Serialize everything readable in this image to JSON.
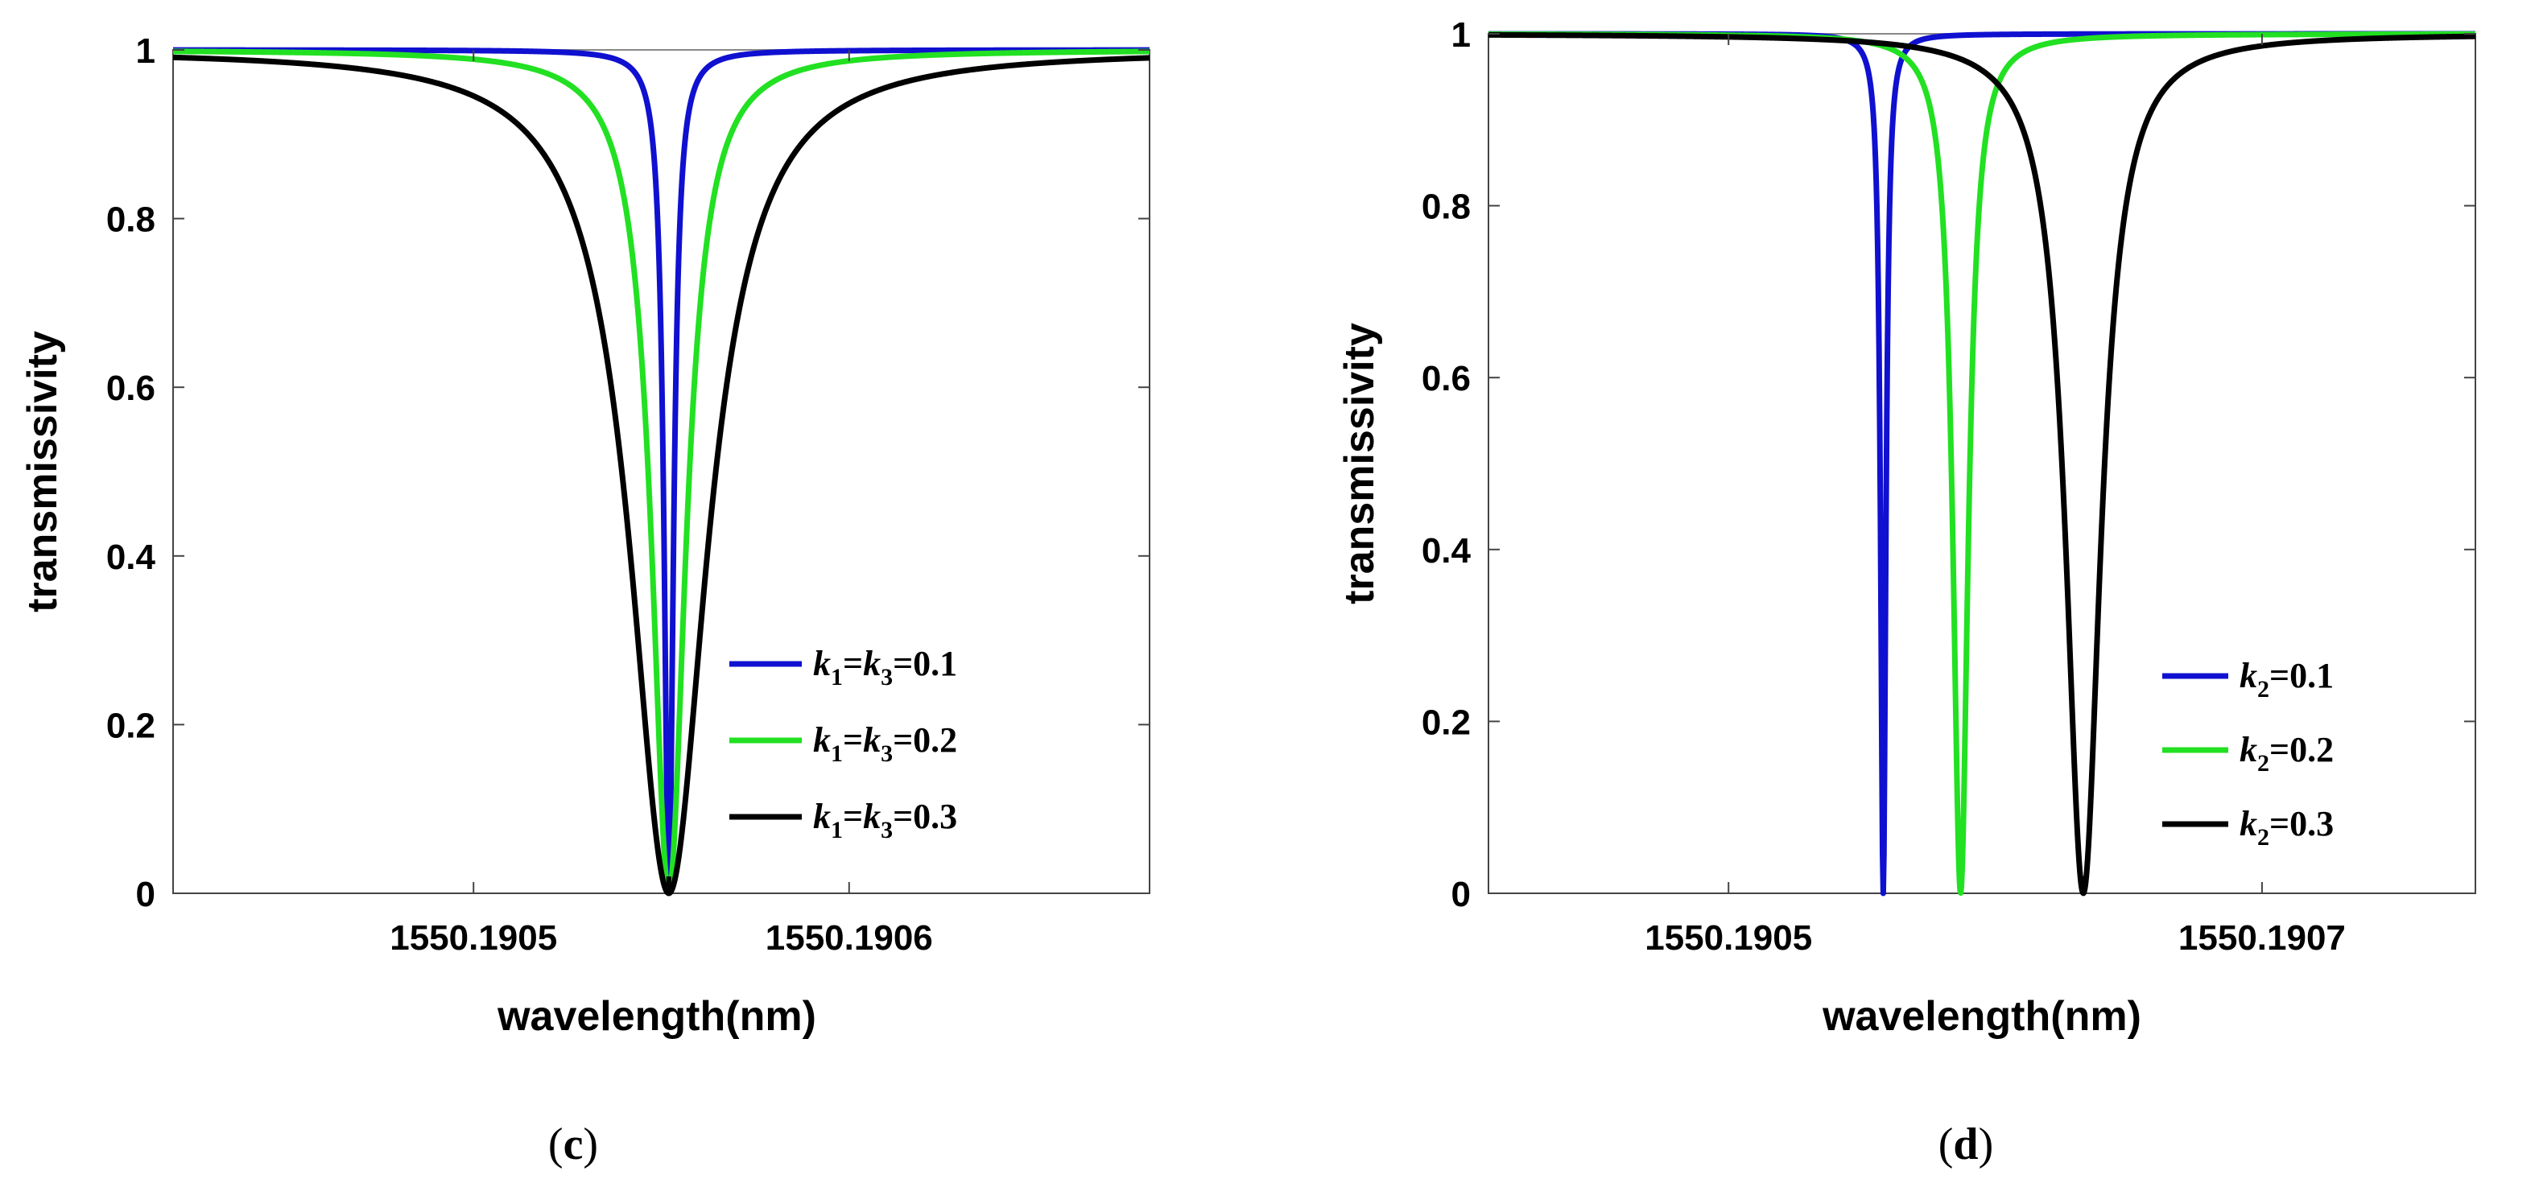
{
  "chart_data": [
    {
      "type": "line",
      "panel_label": "c",
      "xlabel": "wavelength(nm)",
      "ylabel": "transmissivity",
      "xlim": [
        1550.19042,
        1550.19068
      ],
      "ylim": [
        0,
        1
      ],
      "xticks": [
        1550.1905,
        1550.1906
      ],
      "xtick_labels": [
        "1550.1905",
        "1550.1906"
      ],
      "yticks": [
        0,
        0.2,
        0.4,
        0.6,
        0.8,
        1
      ],
      "ytick_labels": [
        "0",
        "0.2",
        "0.4",
        "0.6",
        "0.8",
        "1"
      ],
      "legend_position": "bottom-right",
      "series": [
        {
          "label": "k1=k3=0.1",
          "legend": {
            "k1": "k",
            "s1": "1",
            "eq1": "=",
            "k2": "k",
            "s2": "3",
            "val": "=0.1"
          },
          "color": "#1010d0",
          "center": 1550.190552,
          "halfwidth": 1.5e-06,
          "floor": 0.0
        },
        {
          "label": "k1=k3=0.2",
          "legend": {
            "k1": "k",
            "s1": "1",
            "eq1": "=",
            "k2": "k",
            "s2": "3",
            "val": "=0.2"
          },
          "color": "#22e022",
          "center": 1550.190552,
          "halfwidth": 5.5e-06,
          "floor": 0.0
        },
        {
          "label": "k1=k3=0.3",
          "legend": {
            "k1": "k",
            "s1": "1",
            "eq1": "=",
            "k2": "k",
            "s2": "3",
            "val": "=0.3"
          },
          "color": "#000000",
          "center": 1550.190552,
          "halfwidth": 1.25e-05,
          "floor": 0.0
        }
      ]
    },
    {
      "type": "line",
      "panel_label": "d",
      "xlabel": "wavelength(nm)",
      "ylabel": "transmissivity",
      "xlim": [
        1550.19041,
        1550.19078
      ],
      "ylim": [
        0,
        1
      ],
      "xticks": [
        1550.1905,
        1550.1907
      ],
      "xtick_labels": [
        "1550.1905",
        "1550.1907"
      ],
      "yticks": [
        0,
        0.2,
        0.4,
        0.6,
        0.8,
        1
      ],
      "ytick_labels": [
        "0",
        "0.2",
        "0.4",
        "0.6",
        "0.8",
        "1"
      ],
      "legend_position": "bottom-right",
      "series": [
        {
          "label": "k2=0.1",
          "legend": {
            "k1": "k",
            "s1": "2",
            "val": "=0.1"
          },
          "color": "#1010d0",
          "center": 1550.190558,
          "halfwidth": 1.2e-06,
          "floor": 0.0
        },
        {
          "label": "k2=0.2",
          "legend": {
            "k1": "k",
            "s1": "2",
            "val": "=0.2"
          },
          "color": "#22e022",
          "center": 1550.190587,
          "halfwidth": 3.5e-06,
          "floor": 0.0
        },
        {
          "label": "k2=0.3",
          "legend": {
            "k1": "k",
            "s1": "2",
            "val": "=0.3"
          },
          "color": "#000000",
          "center": 1550.190633,
          "halfwidth": 8e-06,
          "floor": 0.0
        }
      ]
    }
  ],
  "captions": {
    "c_open": "(",
    "c_letter": "c",
    "c_close": ")",
    "d_open": "(",
    "d_letter": "d",
    "d_close": ")"
  }
}
